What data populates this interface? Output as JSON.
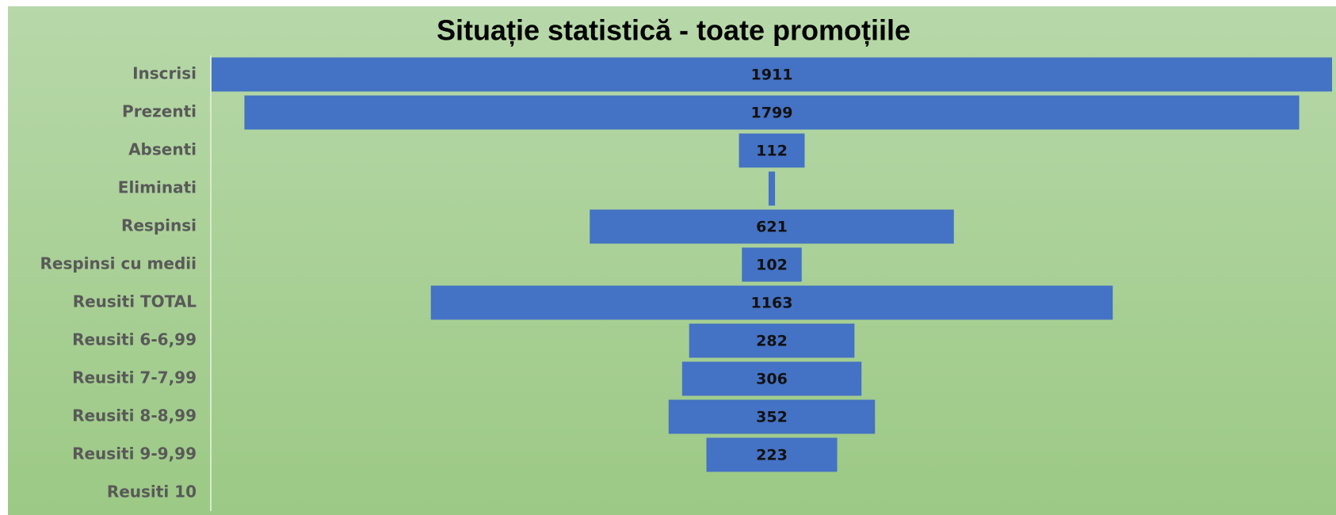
{
  "chart_data": {
    "type": "funnel",
    "title": "Situație statistică - toate promoțiile",
    "categories": [
      "Inscrisi",
      "Prezenti",
      "Absenti",
      "Eliminati",
      "Respinsi",
      "Respinsi cu medii",
      "Reusiti TOTAL",
      "Reusiti 6-6,99",
      "Reusiti 7-7,99",
      "Reusiti 8-8,99",
      "Reusiti 9-9,99",
      "Reusiti 10"
    ],
    "values": [
      1911,
      1799,
      112,
      11,
      621,
      102,
      1163,
      282,
      306,
      352,
      223,
      0
    ],
    "color": "#4472c4"
  }
}
